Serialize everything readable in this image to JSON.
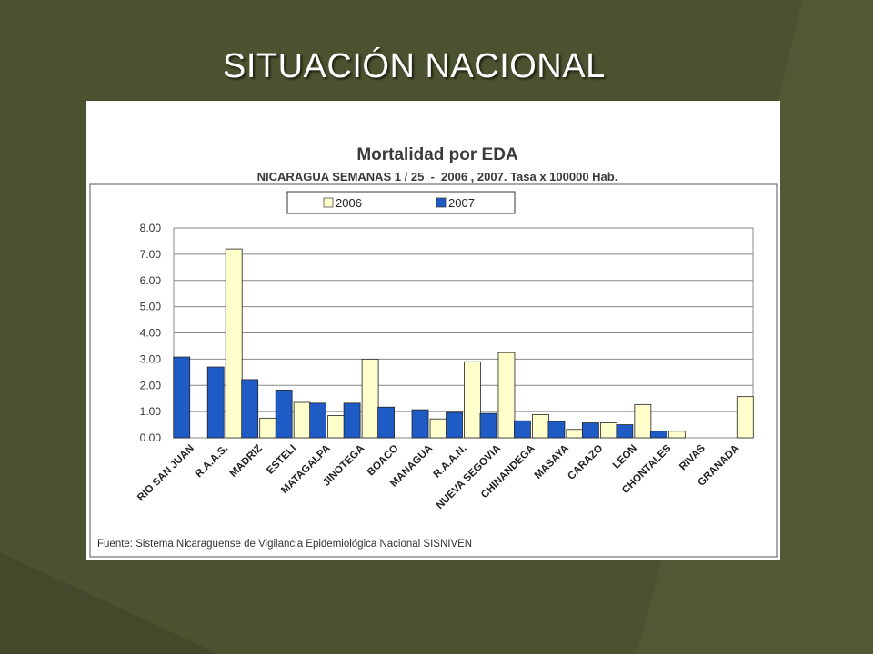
{
  "slide": {
    "title": "SITUACIÓN NACIONAL"
  },
  "colors": {
    "background": "#4a5230",
    "series_2006": "#ffffcc",
    "series_2007": "#1f5bc4"
  },
  "chart_data": {
    "type": "bar",
    "title": "Mortalidad por EDA",
    "subtitle": "NICARAGUA SEMANAS 1 / 25  -  2006 , 2007. Tasa x 100000 Hab.",
    "source": "Fuente: Sistema Nicaraguense de Vigilancia Epidemiológica Nacional SISNIVEN",
    "categories": [
      "RIO SAN JUAN",
      "R.A.A.S.",
      "MADRIZ",
      "ESTELI",
      "MATAGALPA",
      "JINOTEGA",
      "BOACO",
      "MANAGUA",
      "R.A.A.N.",
      "NUEVA SEGOVIA",
      "CHINANDEGA",
      "MASAYA",
      "CARAZO",
      "LEON",
      "CHONTALES",
      "RIVAS",
      "GRANADA"
    ],
    "series": [
      {
        "name": "2006",
        "values": [
          0,
          7.2,
          0.75,
          1.35,
          0.85,
          3.0,
          0,
          0.72,
          2.9,
          3.25,
          0.88,
          0.32,
          0.57,
          1.27,
          0.25,
          0,
          1.57
        ]
      },
      {
        "name": "2007",
        "values": [
          3.08,
          2.7,
          2.22,
          1.82,
          1.32,
          1.32,
          1.17,
          1.07,
          0.97,
          0.93,
          0.65,
          0.62,
          0.57,
          0.5,
          0.25,
          0,
          0
        ]
      }
    ],
    "y_ticks": [
      "0.00",
      "1.00",
      "2.00",
      "3.00",
      "4.00",
      "5.00",
      "6.00",
      "7.00",
      "8.00"
    ],
    "ylim": [
      0,
      8
    ],
    "grid": true,
    "legend_placement": "top-center"
  }
}
